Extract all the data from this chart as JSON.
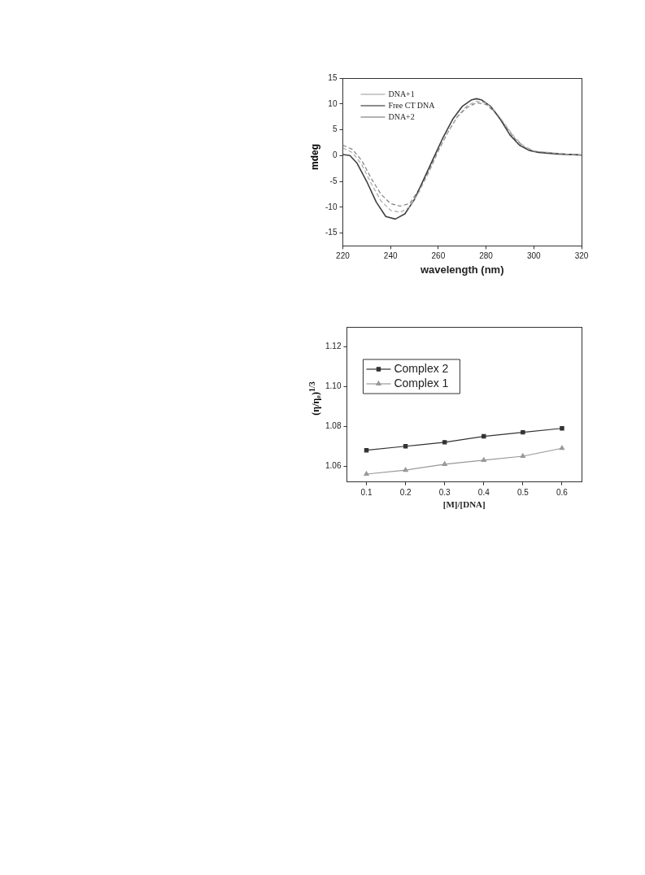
{
  "chart_data": [
    {
      "type": "line",
      "xlabel": "wavelength (nm)",
      "ylabel": "mdeg",
      "xlim": [
        220,
        320
      ],
      "xticks": [
        220,
        240,
        260,
        280,
        300,
        320
      ],
      "ylim": [
        -17.5,
        15
      ],
      "yticks": [
        -15,
        -10,
        -5,
        0,
        5,
        10,
        15
      ],
      "grid": false,
      "legend": "top left",
      "marker": "none",
      "x": [
        220,
        224,
        228,
        232,
        236,
        240,
        244,
        248,
        252,
        256,
        260,
        264,
        268,
        272,
        276,
        280,
        284,
        288,
        292,
        296,
        300,
        310,
        320
      ],
      "series": [
        {
          "name": "DNA+1",
          "color": "#a8a8a8",
          "line_style": "dashed",
          "values": [
            1.5,
            0.6,
            -1.8,
            -5.5,
            -8.8,
            -10.6,
            -11,
            -10,
            -7,
            -3.3,
            0.8,
            4.5,
            7.6,
            9.6,
            10.5,
            10.2,
            8.5,
            6,
            3.5,
            1.8,
            0.9,
            0.4,
            0.1
          ]
        },
        {
          "name": "Free CT DNA",
          "color": "#404040",
          "line_style": "solid",
          "x": [
            220,
            223,
            226,
            230,
            234,
            238,
            242,
            246,
            250,
            254,
            258,
            262,
            266,
            270,
            274,
            276,
            278,
            282,
            286,
            290,
            294,
            298,
            302,
            310,
            320
          ],
          "values": [
            0.2,
            0,
            -1.5,
            -5,
            -9,
            -11.8,
            -12.3,
            -11.3,
            -8.5,
            -4.5,
            -0.5,
            3.5,
            7,
            9.5,
            10.8,
            11,
            10.8,
            9.5,
            7,
            4,
            2,
            1,
            0.6,
            0.3,
            0.1
          ]
        },
        {
          "name": "DNA+2",
          "color": "#808080",
          "line_style": "dashed",
          "values": [
            2,
            1.2,
            -1,
            -4.5,
            -7.5,
            -9.3,
            -9.8,
            -9.3,
            -6.5,
            -3,
            1,
            4.5,
            7.5,
            9.3,
            10.2,
            9.9,
            8.3,
            5.8,
            3.3,
            1.6,
            0.8,
            0.4,
            0.1
          ]
        }
      ]
    },
    {
      "type": "line",
      "xlabel": "[M]/[DNA]",
      "ylabel": "(η/η₀)$^{1/3}$",
      "xlim": [
        0.05,
        0.65
      ],
      "xticks": [
        0.1,
        0.2,
        0.3,
        0.4,
        0.5,
        0.6
      ],
      "ylim": [
        1.052,
        1.13
      ],
      "yticks": [
        1.06,
        1.08,
        {
          "value": 1.1,
          "label": "1.10"
        },
        1.12
      ],
      "grid": false,
      "legend": "top left",
      "x": [
        0.1,
        0.2,
        0.3,
        0.4,
        0.5,
        0.6
      ],
      "series": [
        {
          "name": "Complex 2",
          "color": "#333333",
          "marker": "square",
          "line_style": "solid",
          "values": [
            1.068,
            1.07,
            1.072,
            1.075,
            1.077,
            1.079
          ]
        },
        {
          "name": "Complex 1",
          "color": "#999999",
          "marker": "triangle",
          "line_style": "solid",
          "values": [
            1.056,
            1.058,
            1.061,
            1.063,
            1.065,
            1.069
          ]
        }
      ]
    }
  ]
}
